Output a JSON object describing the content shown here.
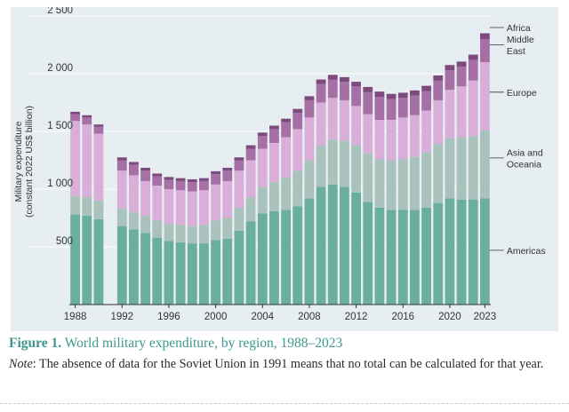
{
  "chart_data": {
    "type": "bar",
    "stacked": true,
    "ylabel_line1": "Military expenditure",
    "ylabel_line2": "(constant 2022 US$ billion)",
    "ylim": [
      0,
      2500
    ],
    "yticks": [
      {
        "value": 500,
        "label": "500"
      },
      {
        "value": 1000,
        "label": "1 000"
      },
      {
        "value": 1500,
        "label": "1 500"
      },
      {
        "value": 2000,
        "label": "2 000"
      },
      {
        "value": 2500,
        "label": "2 500"
      }
    ],
    "xlim": [
      1987.5,
      2023.5
    ],
    "xticks": [
      1988,
      1992,
      1996,
      2000,
      2004,
      2008,
      2012,
      2016,
      2020,
      2023
    ],
    "grid": "horizontal",
    "legend_placement": "right",
    "colors": {
      "Americas": "#6aae9f",
      "Asia and Oceania": "#aac2bc",
      "Europe": "#d9afd9",
      "Middle East": "#a66fa6",
      "Africa": "#7c4a7c"
    },
    "legend": [
      {
        "name": "Africa",
        "lines": [
          "Africa"
        ],
        "label_value": 2400
      },
      {
        "name": "Middle East",
        "lines": [
          "Middle",
          "East"
        ],
        "label_value": 2250
      },
      {
        "name": "Europe",
        "lines": [
          "Europe"
        ],
        "label_value": 1840
      },
      {
        "name": "Asia and Oceania",
        "lines": [
          "Asia and",
          "Oceania"
        ],
        "label_value": 1270
      },
      {
        "name": "Americas",
        "lines": [
          "Americas"
        ],
        "label_value": 470
      }
    ],
    "years": [
      1988,
      1989,
      1990,
      1992,
      1993,
      1994,
      1995,
      1996,
      1997,
      1998,
      1999,
      2000,
      2001,
      2002,
      2003,
      2004,
      2005,
      2006,
      2007,
      2008,
      2009,
      2010,
      2011,
      2012,
      2013,
      2014,
      2015,
      2016,
      2017,
      2018,
      2019,
      2020,
      2021,
      2022,
      2023
    ],
    "series": [
      {
        "name": "Americas",
        "values": [
          780,
          770,
          740,
          680,
          650,
          620,
          580,
          550,
          540,
          530,
          530,
          560,
          570,
          640,
          720,
          790,
          810,
          820,
          850,
          920,
          1020,
          1040,
          1020,
          970,
          890,
          840,
          820,
          820,
          820,
          840,
          880,
          920,
          910,
          910,
          920
        ]
      },
      {
        "name": "Asia and Oceania",
        "values": [
          160,
          160,
          160,
          150,
          150,
          150,
          150,
          150,
          150,
          150,
          160,
          170,
          180,
          200,
          210,
          230,
          250,
          280,
          310,
          330,
          360,
          390,
          400,
          410,
          420,
          420,
          430,
          440,
          460,
          480,
          510,
          520,
          540,
          550,
          590
        ]
      },
      {
        "name": "Europe",
        "values": [
          650,
          630,
          580,
          330,
          320,
          300,
          300,
          300,
          300,
          300,
          300,
          310,
          320,
          320,
          320,
          330,
          340,
          350,
          360,
          370,
          370,
          360,
          350,
          340,
          340,
          340,
          350,
          360,
          360,
          360,
          380,
          420,
          440,
          480,
          590
        ]
      },
      {
        "name": "Middle East",
        "values": [
          60,
          60,
          60,
          90,
          90,
          90,
          80,
          80,
          80,
          80,
          80,
          90,
          90,
          90,
          100,
          110,
          120,
          130,
          140,
          150,
          160,
          160,
          160,
          170,
          190,
          200,
          180,
          170,
          170,
          170,
          170,
          170,
          170,
          180,
          200
        ]
      },
      {
        "name": "Africa",
        "values": [
          20,
          20,
          20,
          25,
          25,
          25,
          25,
          25,
          25,
          25,
          25,
          25,
          25,
          25,
          30,
          30,
          30,
          30,
          35,
          35,
          40,
          40,
          40,
          40,
          45,
          45,
          45,
          45,
          45,
          45,
          45,
          45,
          45,
          45,
          50
        ]
      }
    ]
  },
  "caption": {
    "figure_label": "Figure 1.",
    "figure_title": "World military expenditure, by region, 1988–2023",
    "note_label": "Note",
    "note_text": ": The absence of data for the Soviet Union in 1991 means that no total can be calculated for that year."
  }
}
